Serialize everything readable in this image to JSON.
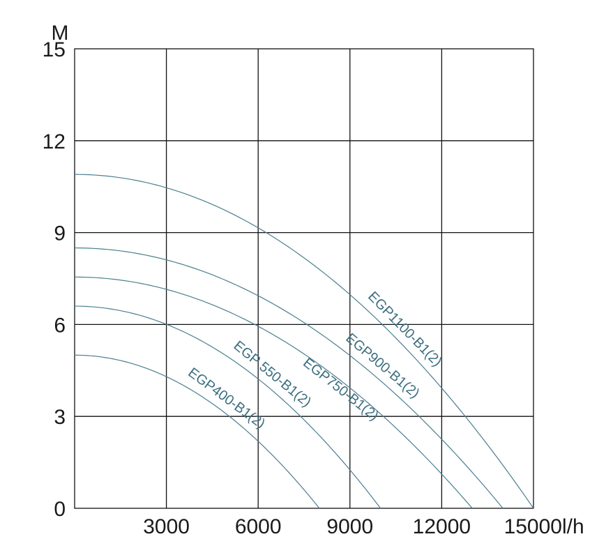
{
  "chart_data": {
    "type": "line",
    "title": "",
    "xlabel": "l/h",
    "ylabel": "M",
    "xlim": [
      0,
      15000
    ],
    "ylim": [
      0,
      15
    ],
    "x_ticks": [
      3000,
      6000,
      9000,
      12000,
      15000
    ],
    "y_ticks": [
      0,
      3,
      6,
      9,
      12,
      15
    ],
    "grid": true,
    "legend": "none",
    "curve_color": "#4a7f8f",
    "series": [
      {
        "name": "EGP1100-B1(2)",
        "max_head": 10.9,
        "max_flow": 15000
      },
      {
        "name": "EGP900-B1(2)",
        "max_head": 8.5,
        "max_flow": 14000
      },
      {
        "name": "EGP750-B1(2)",
        "max_head": 7.55,
        "max_flow": 13000
      },
      {
        "name": "EGP 550-B1(2)",
        "max_head": 6.6,
        "max_flow": 10000
      },
      {
        "name": "EGP400-B1(2)",
        "max_head": 5.0,
        "max_flow": 8000
      }
    ]
  }
}
